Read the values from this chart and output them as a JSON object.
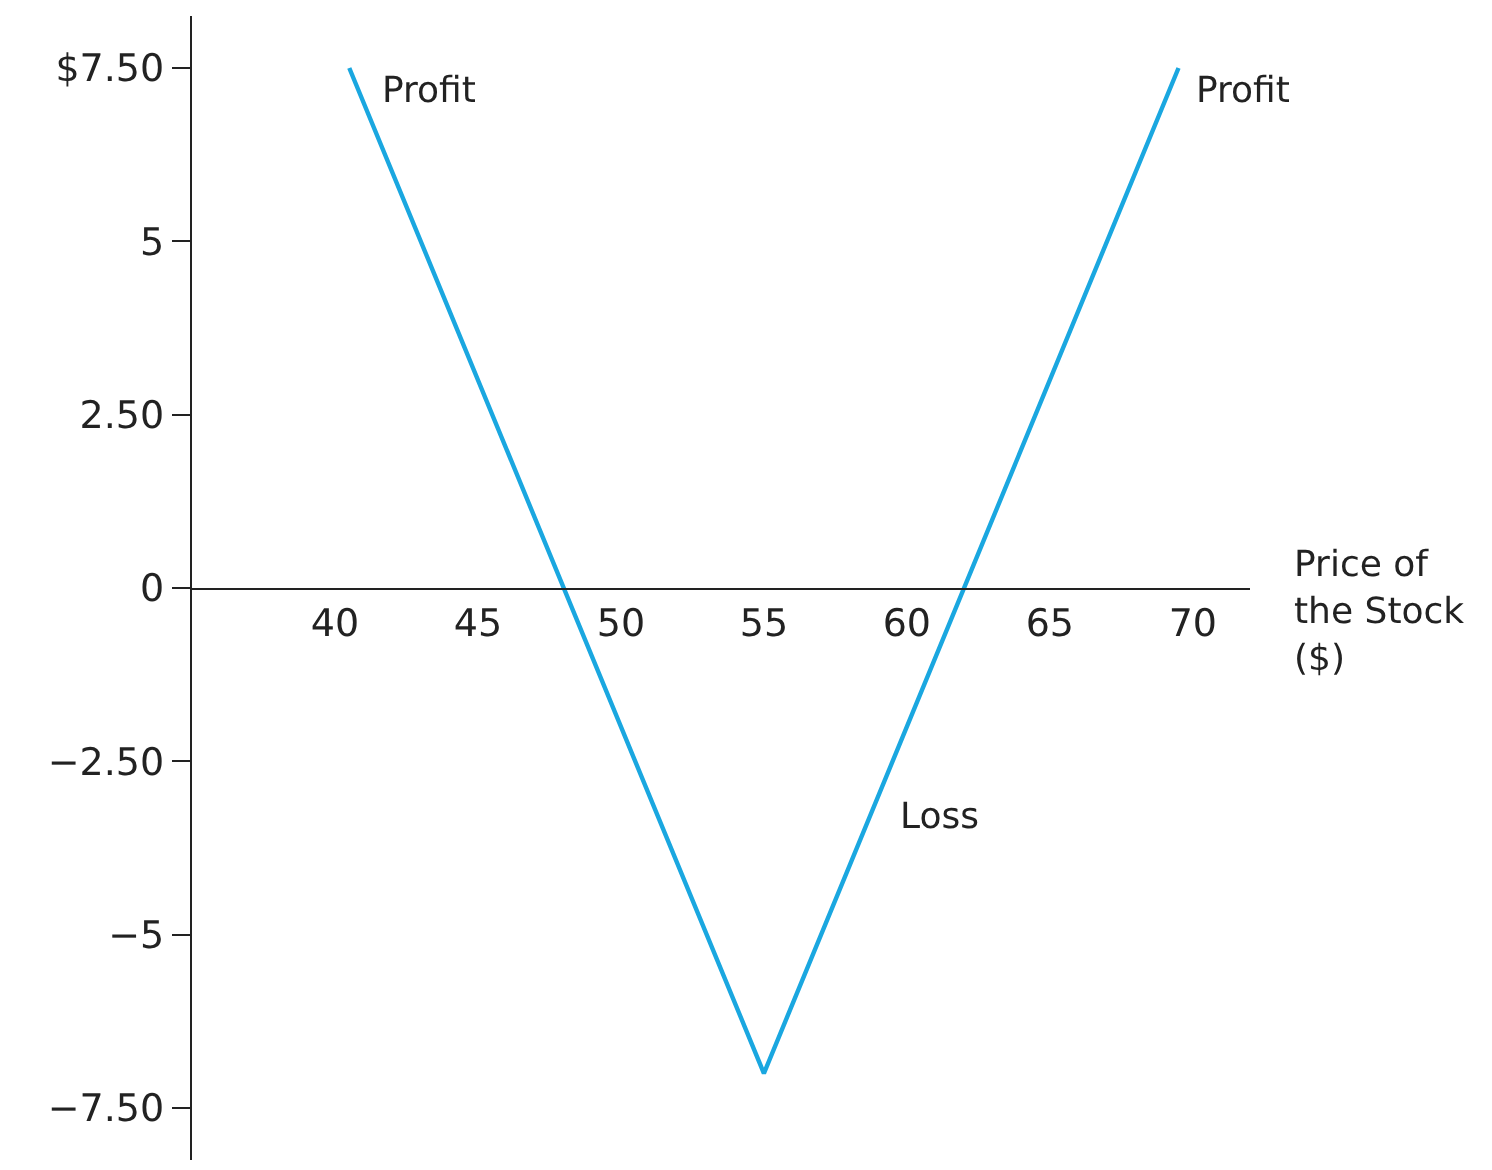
{
  "chart_data": {
    "type": "line",
    "xlabel": "Price of the Stock ($)",
    "x": [
      40.5,
      55,
      69.5
    ],
    "series": [
      {
        "color": "#1aa7e0",
        "values": [
          7.5,
          -7,
          7.5
        ]
      }
    ],
    "xlim": [
      35,
      72
    ],
    "xticks": [
      40,
      45,
      50,
      55,
      60,
      65,
      70
    ],
    "ylim": [
      -8.25,
      8.25
    ],
    "yticks": [
      {
        "value": 7.5,
        "label": "$7.50"
      },
      5,
      {
        "value": 2.5,
        "label": "2.50"
      },
      0,
      {
        "value": -2.5,
        "label": "−2.50"
      },
      {
        "value": -5,
        "label": "−5"
      },
      {
        "value": -7.5,
        "label": "−7.50"
      }
    ],
    "annotations": [
      "Profit",
      "Profit",
      "Loss"
    ],
    "marker": "none",
    "line_style": "solid"
  }
}
